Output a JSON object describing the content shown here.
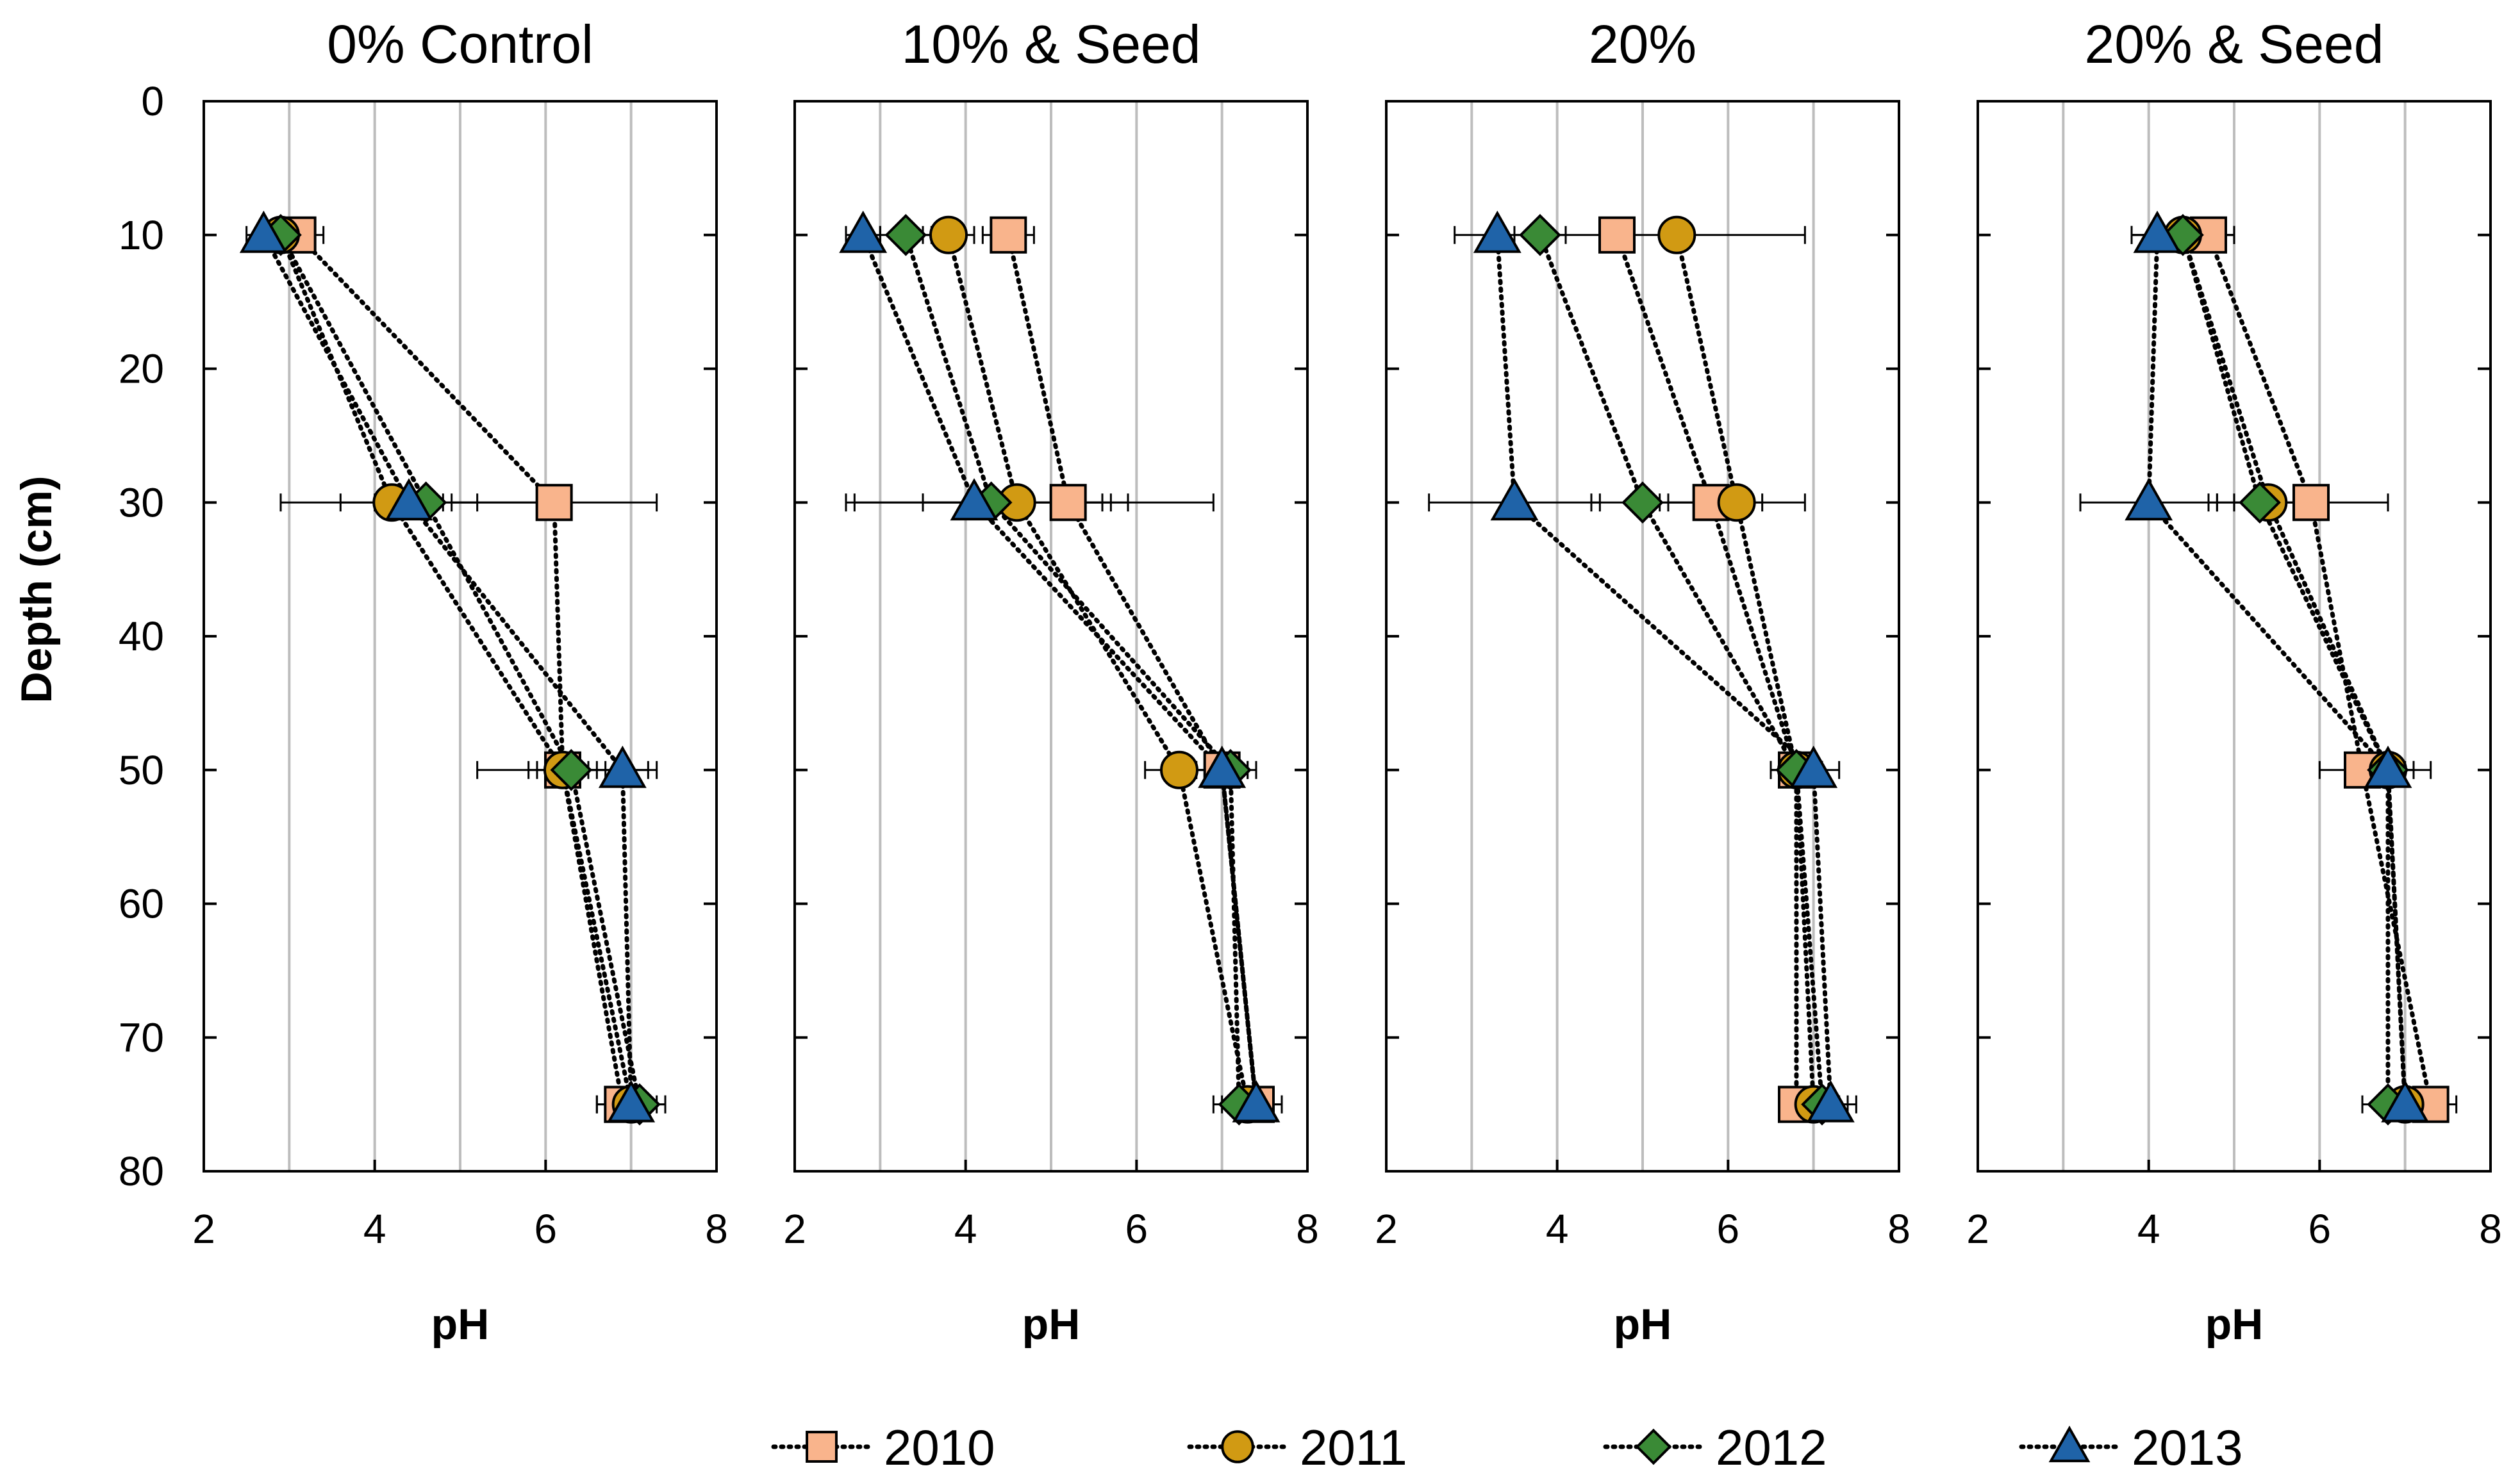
{
  "chart_data": {
    "type": "scatter",
    "ylabel": "Depth (cm)",
    "xlabel": "pH",
    "xlim": [
      2,
      8
    ],
    "ylim": [
      0,
      80
    ],
    "x_ticks": [
      "2",
      "4",
      "6",
      "8"
    ],
    "y_ticks": [
      "0",
      "10",
      "20",
      "30",
      "40",
      "50",
      "60",
      "70",
      "80"
    ],
    "x_gridlines": [
      3,
      4,
      5,
      6,
      7
    ],
    "colors": {
      "2010": "#f9b48c",
      "2011": "#d19a13",
      "2012": "#3a8a36",
      "2013": "#1f63a8"
    },
    "legend": [
      {
        "year": "2010",
        "label": "2010",
        "marker": "square"
      },
      {
        "year": "2011",
        "label": "2011",
        "marker": "circle"
      },
      {
        "year": "2012",
        "label": "2012",
        "marker": "diamond"
      },
      {
        "year": "2013",
        "label": "2013",
        "marker": "triangle"
      }
    ],
    "panels": [
      {
        "title": "0% Control",
        "series": [
          {
            "year": "2010",
            "points": [
              {
                "ph": 3.1,
                "depth": 10,
                "err": 0.3
              },
              {
                "ph": 6.1,
                "depth": 30,
                "err": 1.2
              },
              {
                "ph": 6.2,
                "depth": 50,
                "err": 1.0
              },
              {
                "ph": 6.9,
                "depth": 75,
                "err": 0.3
              }
            ]
          },
          {
            "year": "2011",
            "points": [
              {
                "ph": 2.9,
                "depth": 10,
                "err": 0.2
              },
              {
                "ph": 4.2,
                "depth": 30,
                "err": 0.6
              },
              {
                "ph": 6.2,
                "depth": 50,
                "err": 0.4
              },
              {
                "ph": 7.0,
                "depth": 75,
                "err": 0.3
              }
            ]
          },
          {
            "year": "2012",
            "points": [
              {
                "ph": 2.9,
                "depth": 10,
                "err": 0.2
              },
              {
                "ph": 4.6,
                "depth": 30,
                "err": 0.6
              },
              {
                "ph": 6.3,
                "depth": 50,
                "err": 0.4
              },
              {
                "ph": 7.1,
                "depth": 75,
                "err": 0.3
              }
            ]
          },
          {
            "year": "2013",
            "points": [
              {
                "ph": 2.7,
                "depth": 10,
                "err": 0.2
              },
              {
                "ph": 4.4,
                "depth": 30,
                "err": 1.5
              },
              {
                "ph": 6.9,
                "depth": 50,
                "err": 0.4
              },
              {
                "ph": 7.0,
                "depth": 75,
                "err": 0.4
              }
            ]
          }
        ]
      },
      {
        "title": "10% & Seed",
        "series": [
          {
            "year": "2010",
            "points": [
              {
                "ph": 4.5,
                "depth": 10,
                "err": 0.3
              },
              {
                "ph": 5.2,
                "depth": 30,
                "err": 1.7
              },
              {
                "ph": 7.0,
                "depth": 50,
                "err": 0.3
              },
              {
                "ph": 7.4,
                "depth": 75,
                "err": 0.3
              }
            ]
          },
          {
            "year": "2011",
            "points": [
              {
                "ph": 3.8,
                "depth": 10,
                "err": 0.3
              },
              {
                "ph": 4.6,
                "depth": 30,
                "err": 1.1
              },
              {
                "ph": 6.5,
                "depth": 50,
                "err": 0.4
              },
              {
                "ph": 7.3,
                "depth": 75,
                "err": 0.3
              }
            ]
          },
          {
            "year": "2012",
            "points": [
              {
                "ph": 3.3,
                "depth": 10,
                "err": 0.3
              },
              {
                "ph": 4.3,
                "depth": 30,
                "err": 1.6
              },
              {
                "ph": 7.1,
                "depth": 50,
                "err": 0.3
              },
              {
                "ph": 7.2,
                "depth": 75,
                "err": 0.3
              }
            ]
          },
          {
            "year": "2013",
            "points": [
              {
                "ph": 2.8,
                "depth": 10,
                "err": 0.2
              },
              {
                "ph": 4.1,
                "depth": 30,
                "err": 1.5
              },
              {
                "ph": 7.0,
                "depth": 50,
                "err": 0.3
              },
              {
                "ph": 7.4,
                "depth": 75,
                "err": 0.3
              }
            ]
          }
        ]
      },
      {
        "title": "20%",
        "series": [
          {
            "year": "2010",
            "points": [
              {
                "ph": 4.7,
                "depth": 10,
                "err": 0.2
              },
              {
                "ph": 5.8,
                "depth": 30,
                "err": 0.6
              },
              {
                "ph": 6.8,
                "depth": 50,
                "err": 0.3
              },
              {
                "ph": 6.8,
                "depth": 75,
                "err": 0.2
              }
            ]
          },
          {
            "year": "2011",
            "points": [
              {
                "ph": 5.4,
                "depth": 10,
                "err": 1.5
              },
              {
                "ph": 6.1,
                "depth": 30,
                "err": 0.8
              },
              {
                "ph": 6.8,
                "depth": 50,
                "err": 0.3
              },
              {
                "ph": 7.0,
                "depth": 75,
                "err": 0.3
              }
            ]
          },
          {
            "year": "2012",
            "points": [
              {
                "ph": 3.8,
                "depth": 10,
                "err": 0.3
              },
              {
                "ph": 5.0,
                "depth": 30,
                "err": 0.6
              },
              {
                "ph": 6.8,
                "depth": 50,
                "err": 0.3
              },
              {
                "ph": 7.1,
                "depth": 75,
                "err": 0.3
              }
            ]
          },
          {
            "year": "2013",
            "points": [
              {
                "ph": 3.3,
                "depth": 10,
                "err": 0.5
              },
              {
                "ph": 3.5,
                "depth": 30,
                "err": 1.0
              },
              {
                "ph": 7.0,
                "depth": 50,
                "err": 0.3
              },
              {
                "ph": 7.2,
                "depth": 75,
                "err": 0.3
              }
            ]
          }
        ]
      },
      {
        "title": "20% & Seed",
        "series": [
          {
            "year": "2010",
            "points": [
              {
                "ph": 4.7,
                "depth": 10,
                "err": 0.3
              },
              {
                "ph": 5.9,
                "depth": 30,
                "err": 0.9
              },
              {
                "ph": 6.5,
                "depth": 50,
                "err": 0.5
              },
              {
                "ph": 7.3,
                "depth": 75,
                "err": 0.3
              }
            ]
          },
          {
            "year": "2011",
            "points": [
              {
                "ph": 4.4,
                "depth": 10,
                "err": 0.6
              },
              {
                "ph": 5.4,
                "depth": 30,
                "err": 0.6
              },
              {
                "ph": 6.8,
                "depth": 50,
                "err": 0.3
              },
              {
                "ph": 7.0,
                "depth": 75,
                "err": 0.3
              }
            ]
          },
          {
            "year": "2012",
            "points": [
              {
                "ph": 4.4,
                "depth": 10,
                "err": 0.6
              },
              {
                "ph": 5.3,
                "depth": 30,
                "err": 0.6
              },
              {
                "ph": 6.8,
                "depth": 50,
                "err": 0.5
              },
              {
                "ph": 6.8,
                "depth": 75,
                "err": 0.3
              }
            ]
          },
          {
            "year": "2013",
            "points": [
              {
                "ph": 4.1,
                "depth": 10,
                "err": 0.3
              },
              {
                "ph": 4.0,
                "depth": 30,
                "err": 0.8
              },
              {
                "ph": 6.8,
                "depth": 50,
                "err": 0.3
              },
              {
                "ph": 7.0,
                "depth": 75,
                "err": 0.3
              }
            ]
          }
        ]
      }
    ]
  }
}
